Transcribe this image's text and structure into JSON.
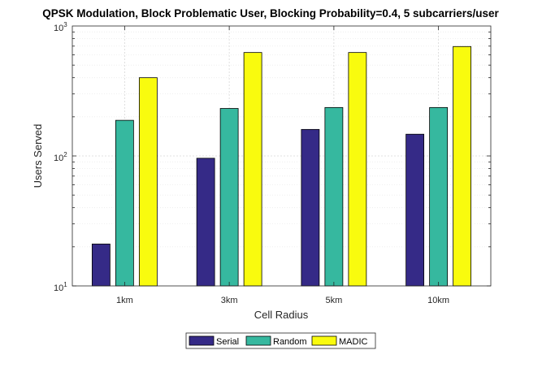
{
  "chart_data": {
    "type": "bar",
    "title": "QPSK Modulation, Block Problematic User, Blocking Probability=0.4, 5 subcarriers/user",
    "xlabel": "Cell Radius",
    "ylabel": "Users Served",
    "categories": [
      "1km",
      "3km",
      "5km",
      "10km"
    ],
    "yscale": "log",
    "ylim": [
      10,
      1000
    ],
    "yticks": [
      {
        "base": "10",
        "exp": "1",
        "value": 10
      },
      {
        "base": "10",
        "exp": "2",
        "value": 100
      },
      {
        "base": "10",
        "exp": "3",
        "value": 1000
      }
    ],
    "grid": true,
    "legend_position": "bottom-center",
    "series": [
      {
        "name": "Serial",
        "color": "#352a87",
        "values": [
          21,
          96,
          160,
          147
        ]
      },
      {
        "name": "Random",
        "color": "#36b89f",
        "values": [
          188,
          232,
          236,
          236
        ]
      },
      {
        "name": "MADIC",
        "color": "#f9fb0e",
        "values": [
          400,
          625,
          625,
          695
        ]
      }
    ]
  }
}
